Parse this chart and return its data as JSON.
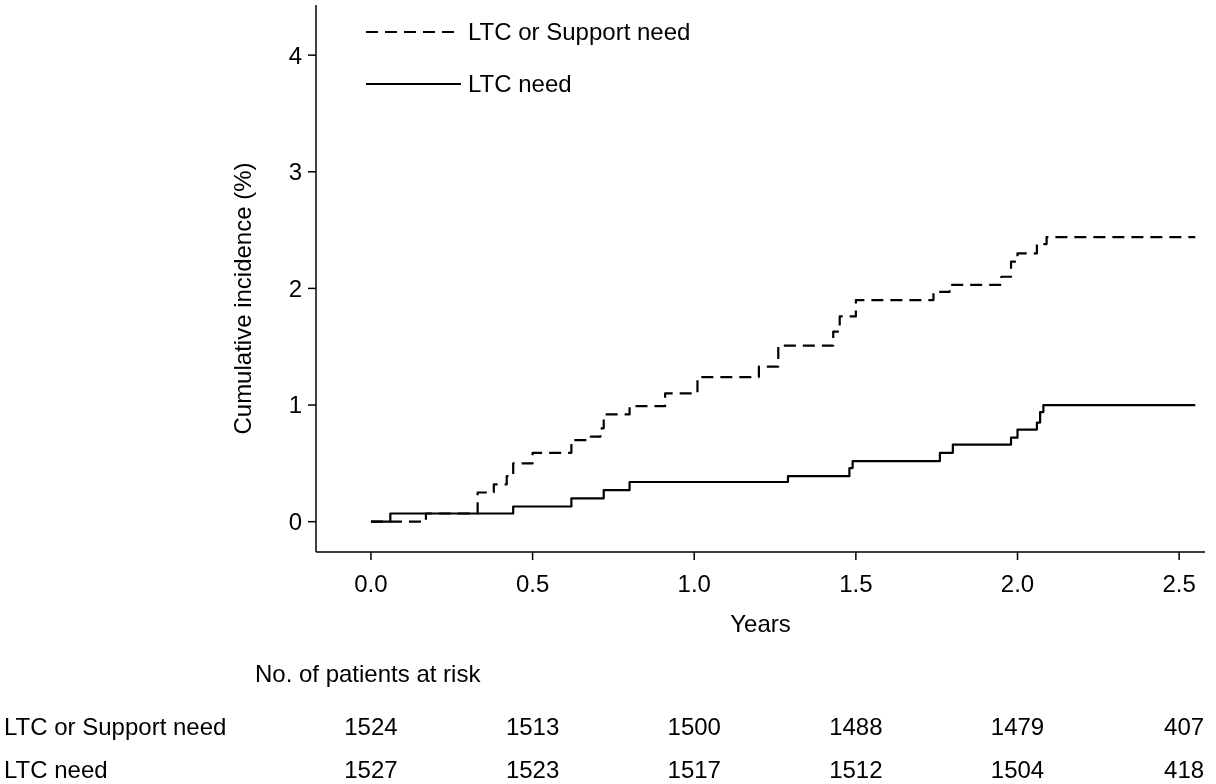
{
  "chart_data": {
    "type": "step",
    "xlabel": "Years",
    "ylabel": "Cumulative incidence (%)",
    "xlim": [
      -0.17,
      2.58
    ],
    "ylim": [
      -0.26,
      4.43
    ],
    "xticks": [
      {
        "value": 0,
        "label": "0.0"
      },
      {
        "value": 0.5,
        "label": "0.5"
      },
      {
        "value": 1,
        "label": "1.0"
      },
      {
        "value": 1.5,
        "label": "1.5"
      },
      {
        "value": 2,
        "label": "2.0"
      },
      {
        "value": 2.5,
        "label": "2.5"
      }
    ],
    "yticks": [
      0,
      1,
      2,
      3,
      4
    ],
    "grid": false,
    "legend": "top left",
    "series": [
      {
        "name": "LTC or Support need",
        "color": "#000000",
        "line_style": "dashed",
        "x": [
          0,
          0.17,
          0.33,
          0.38,
          0.42,
          0.44,
          0.5,
          0.62,
          0.68,
          0.71,
          0.72,
          0.8,
          0.91,
          1.01,
          1.2,
          1.26,
          1.43,
          1.45,
          1.5,
          1.74,
          1.79,
          1.95,
          1.98,
          2.0,
          2.06,
          2.09,
          2.55
        ],
        "values": [
          0,
          0.07,
          0.25,
          0.32,
          0.39,
          0.5,
          0.59,
          0.7,
          0.73,
          0.8,
          0.92,
          0.99,
          1.1,
          1.24,
          1.33,
          1.51,
          1.63,
          1.76,
          1.9,
          1.97,
          2.03,
          2.1,
          2.23,
          2.3,
          2.38,
          2.44,
          2.44
        ]
      },
      {
        "name": "LTC need",
        "color": "#000000",
        "line_style": "solid",
        "x": [
          0,
          0.06,
          0.44,
          0.62,
          0.72,
          0.8,
          1.29,
          1.48,
          1.49,
          1.76,
          1.8,
          1.98,
          2.0,
          2.06,
          2.07,
          2.08,
          2.55
        ],
        "values": [
          0,
          0.07,
          0.13,
          0.2,
          0.27,
          0.34,
          0.39,
          0.46,
          0.52,
          0.59,
          0.66,
          0.72,
          0.79,
          0.85,
          0.94,
          1.0,
          1.0
        ]
      }
    ],
    "annotations": [
      "No. of patients at risk",
      "1524",
      "1513",
      "1500",
      "1488",
      "1479",
      "407",
      "1527",
      "1523",
      "1517",
      "1512",
      "1504",
      "418"
    ]
  }
}
